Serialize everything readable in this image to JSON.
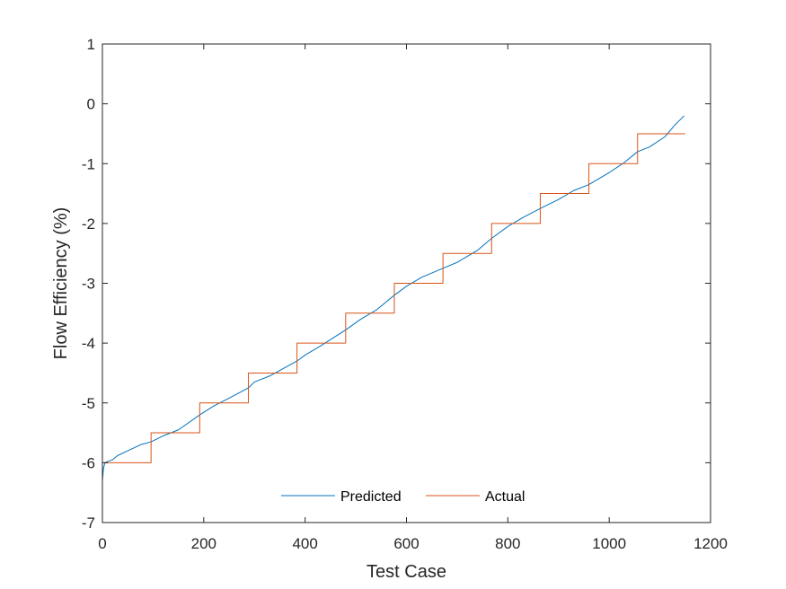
{
  "chart_data": {
    "type": "line",
    "xlabel": "Test Case",
    "ylabel": "Flow Efficiency (%)",
    "xlim": [
      0,
      1200
    ],
    "ylim": [
      -7,
      1
    ],
    "xticks": [
      0,
      200,
      400,
      600,
      800,
      1000,
      1200
    ],
    "yticks": [
      1,
      0,
      -1,
      -2,
      -3,
      -4,
      -5,
      -6,
      -7
    ],
    "xtick_labels": [
      "0",
      "200",
      "400",
      "600",
      "800",
      "1000",
      "1200"
    ],
    "ytick_labels": [
      "1",
      "0",
      "-1",
      "-2",
      "-3",
      "-4",
      "-5",
      "-6",
      "-7"
    ],
    "grid": false,
    "legend_position": "bottom-center",
    "series": [
      {
        "name": "Predicted",
        "color": "#0072BD",
        "x": [
          0,
          2,
          5,
          10,
          20,
          30,
          50,
          75,
          96,
          120,
          150,
          192,
          220,
          250,
          288,
          300,
          330,
          384,
          400,
          430,
          480,
          510,
          540,
          576,
          600,
          630,
          672,
          700,
          740,
          768,
          800,
          830,
          864,
          900,
          930,
          960,
          1000,
          1030,
          1056,
          1080,
          1110,
          1130,
          1148
        ],
        "y": [
          -6.3,
          -6.1,
          -6.0,
          -5.98,
          -5.95,
          -5.88,
          -5.8,
          -5.7,
          -5.65,
          -5.55,
          -5.45,
          -5.2,
          -5.05,
          -4.92,
          -4.75,
          -4.65,
          -4.55,
          -4.3,
          -4.2,
          -4.05,
          -3.78,
          -3.6,
          -3.45,
          -3.2,
          -3.05,
          -2.9,
          -2.75,
          -2.65,
          -2.45,
          -2.25,
          -2.05,
          -1.9,
          -1.75,
          -1.6,
          -1.45,
          -1.35,
          -1.15,
          -0.98,
          -0.8,
          -0.72,
          -0.55,
          -0.35,
          -0.2
        ]
      },
      {
        "name": "Actual",
        "color": "#D95319",
        "step": true,
        "x": [
          0,
          96,
          96,
          192,
          192,
          288,
          288,
          384,
          384,
          480,
          480,
          576,
          576,
          672,
          672,
          768,
          768,
          864,
          864,
          960,
          960,
          1056,
          1056,
          1150
        ],
        "y": [
          -6,
          -6,
          -5.5,
          -5.5,
          -5,
          -5,
          -4.5,
          -4.5,
          -4,
          -4,
          -3.5,
          -3.5,
          -3,
          -3,
          -2.5,
          -2.5,
          -2,
          -2,
          -1.5,
          -1.5,
          -1,
          -1,
          -0.5,
          -0.5
        ]
      }
    ]
  }
}
